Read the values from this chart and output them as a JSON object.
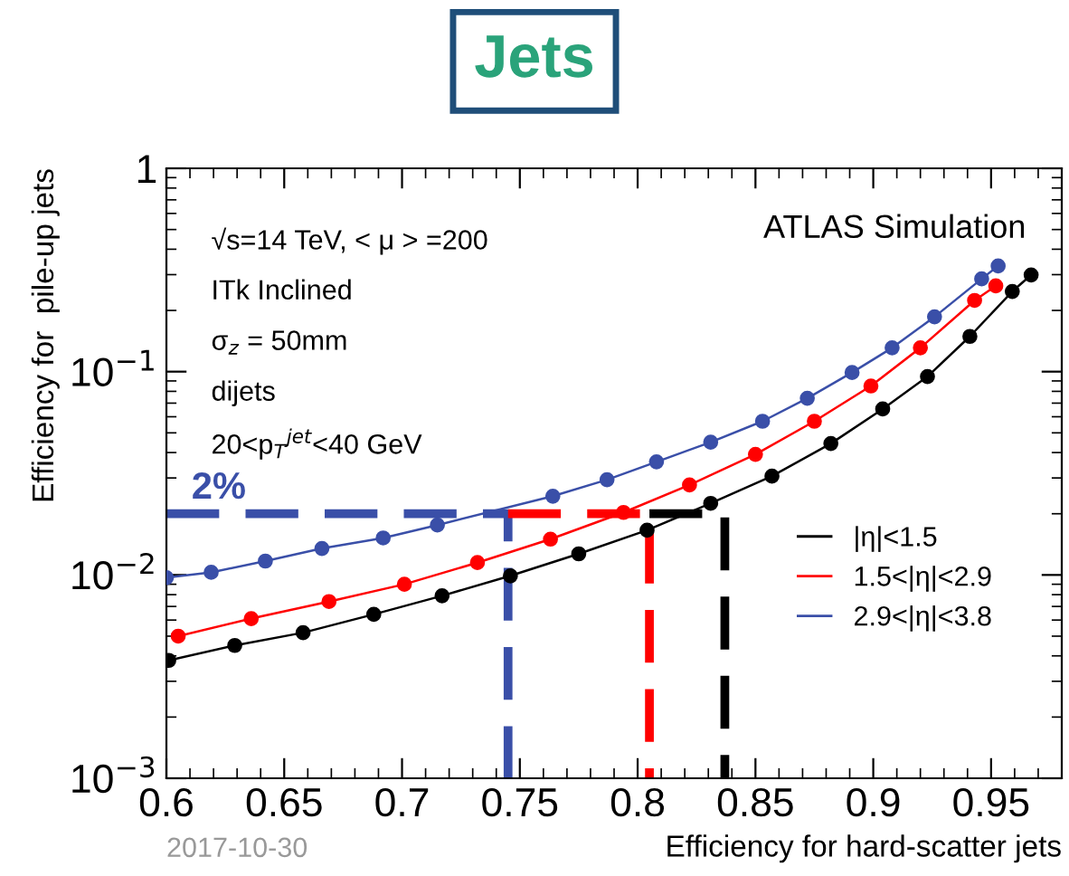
{
  "chart_data": {
    "type": "line",
    "title": "Jets",
    "xlabel": "Efficiency for hard-scatter jets",
    "ylabel": "Efficiency for  pile-up jets",
    "annotations": [
      "√s=14 TeV, < μ > =200",
      "ITk Inclined",
      "σ$_{z}$ = 50mm",
      "dijets",
      "20<p$_{T}$$^{jet}$<40 GeV",
      "ATLAS Simulation",
      {
        "text": "2%",
        "x": 0.6,
        "y": 0.02
      },
      "2017-10-30"
    ],
    "log": "y",
    "xlim": [
      0.6,
      0.98
    ],
    "xticks": [
      0.6,
      0.65,
      0.7,
      0.75,
      0.8,
      0.85,
      0.9,
      0.95
    ],
    "ylim": [
      0.001,
      1
    ],
    "yticks": [
      {
        "value": 0.001,
        "label": "10$^{−3}$"
      },
      {
        "value": 0.01,
        "label": "10$^{−2}$"
      },
      {
        "value": 0.1,
        "label": "10$^{−1}$"
      },
      1
    ],
    "marker": "circle",
    "grid": false,
    "legend": "bottom right",
    "series": [
      {
        "name": "|η|<1.5",
        "color": "#000000",
        "x": [
          0.601,
          0.629,
          0.658,
          0.688,
          0.717,
          0.746,
          0.775,
          0.804,
          0.831,
          0.857,
          0.882,
          0.904,
          0.923,
          0.941,
          0.959,
          0.967
        ],
        "values": [
          0.0038,
          0.0045,
          0.0052,
          0.0064,
          0.0079,
          0.0099,
          0.0127,
          0.0166,
          0.0225,
          0.0306,
          0.0443,
          0.0655,
          0.0946,
          0.149,
          0.248,
          0.299
        ]
      },
      {
        "name": "1.5<|η|<2.9",
        "color": "#ff0000",
        "x": [
          0.605,
          0.636,
          0.669,
          0.701,
          0.732,
          0.763,
          0.794,
          0.822,
          0.85,
          0.875,
          0.899,
          0.92,
          0.943,
          0.952
        ],
        "values": [
          0.005,
          0.0061,
          0.0074,
          0.009,
          0.0115,
          0.015,
          0.0203,
          0.0277,
          0.0392,
          0.057,
          0.085,
          0.131,
          0.224,
          0.264
        ]
      },
      {
        "name": "2.9<|η|<3.8",
        "color": "#3a4fa8",
        "x": [
          0.6,
          0.619,
          0.642,
          0.666,
          0.692,
          0.715,
          0.764,
          0.787,
          0.808,
          0.831,
          0.853,
          0.872,
          0.891,
          0.908,
          0.926,
          0.946,
          0.953
        ],
        "values": [
          0.0097,
          0.0103,
          0.0117,
          0.0135,
          0.0152,
          0.0176,
          0.0244,
          0.0294,
          0.036,
          0.045,
          0.057,
          0.074,
          0.099,
          0.131,
          0.186,
          0.286,
          0.331
        ]
      },
      {
        "color": "#3a4fa8",
        "marker": "none",
        "line_style": "dashed",
        "x": [
          0.6,
          0.745,
          0.745
        ],
        "values": [
          0.02,
          0.02,
          0.001
        ]
      },
      {
        "color": "#ff0000",
        "marker": "none",
        "line_style": "dashed",
        "x": [
          0.745,
          0.805,
          0.805
        ],
        "values": [
          0.02,
          0.02,
          0.001
        ]
      },
      {
        "color": "#000000",
        "marker": "none",
        "line_style": "dashed",
        "x": [
          0.805,
          0.837,
          0.837
        ],
        "values": [
          0.02,
          0.02,
          0.001
        ]
      }
    ]
  }
}
